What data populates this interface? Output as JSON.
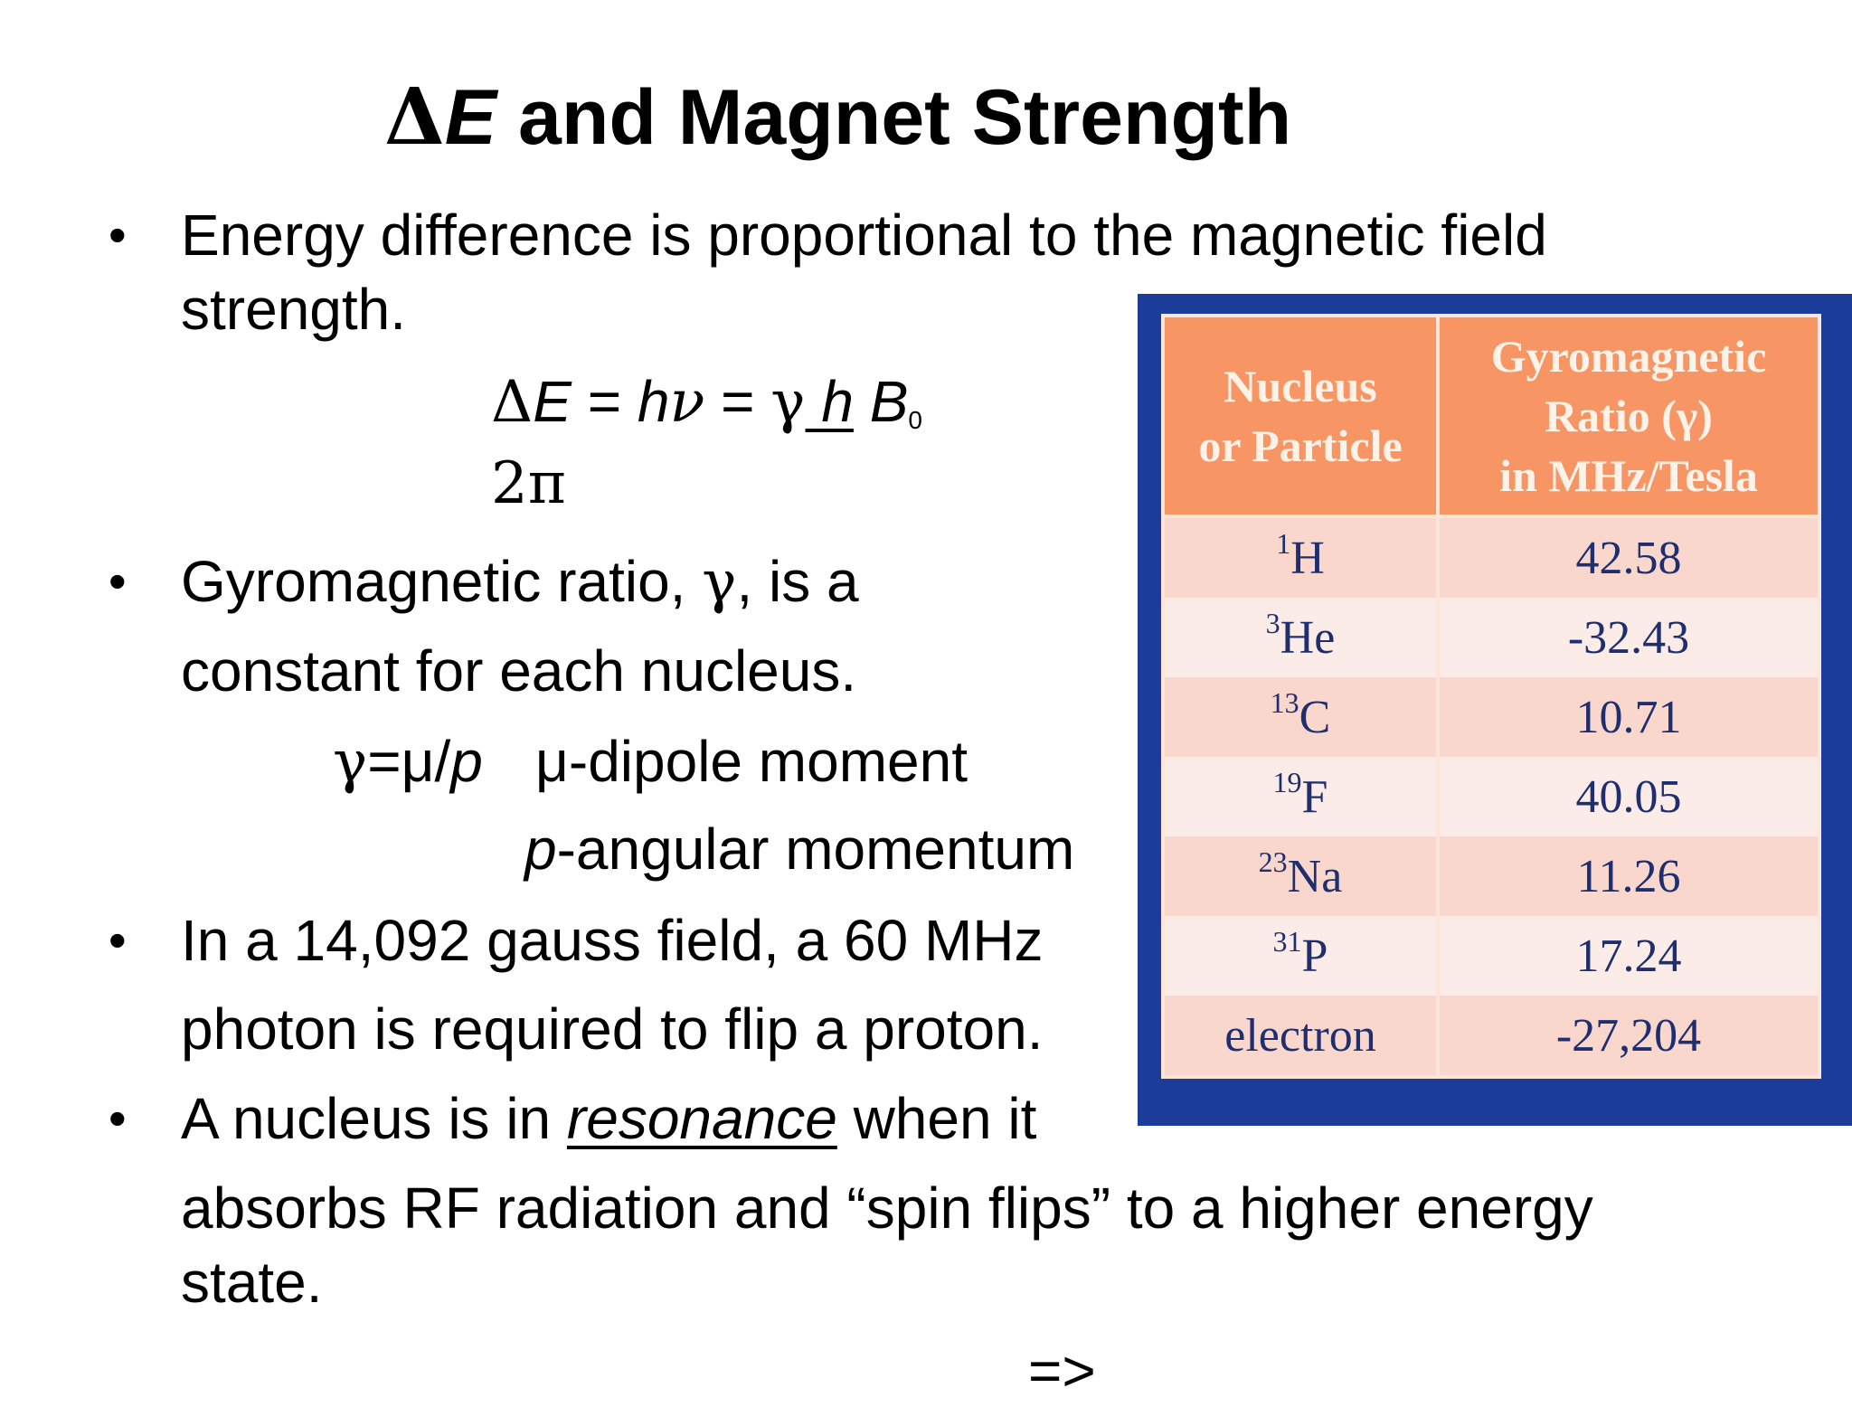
{
  "title": {
    "delta": "Δ",
    "var": "E",
    "rest": " and Magnet Strength"
  },
  "bullet_char": "•",
  "b1": {
    "line1": "Energy difference is proportional to the magnetic field",
    "line2": "strength."
  },
  "formula": {
    "delta": "Δ",
    "e": "E",
    "eq1": " = ",
    "h": "h",
    "nu": "ν",
    "eq2": " = ",
    "gamma": "γ",
    "hbar": " h",
    "b": " B",
    "sub0": "0",
    "denom": "2π"
  },
  "b2": {
    "line1_a": "Gyromagnetic ratio, ",
    "gamma": "γ",
    "line1_b": ", is a",
    "line2": "constant for each nucleus."
  },
  "gamma_def": {
    "gamma": "γ",
    "eq": "=μ/",
    "p": "p",
    "dipole": "μ-dipole moment",
    "p2": "p",
    "angular": "-angular momentum"
  },
  "b3": {
    "line1": "In a 14,092 gauss field, a 60 MHz",
    "line2": "photon is required to flip a proton."
  },
  "b4": {
    "line1_a": "A nucleus is in ",
    "resonance": "resonance",
    "line1_b": " when it",
    "line2": "absorbs RF radiation and “spin flips” to a higher energy",
    "line3": "state."
  },
  "next": "=>",
  "table": {
    "header": {
      "col1_l1": "Nucleus",
      "col1_l2": "or Particle",
      "col2_l1": "Gyromagnetic",
      "col2_l2": "Ratio (γ)",
      "col2_l3": "in MHz/Tesla"
    },
    "rows": [
      {
        "mass": "1",
        "sym": "H",
        "value": "42.58"
      },
      {
        "mass": "3",
        "sym": "He",
        "value": "-32.43"
      },
      {
        "mass": "13",
        "sym": "C",
        "value": "10.71"
      },
      {
        "mass": "19",
        "sym": "F",
        "value": "40.05"
      },
      {
        "mass": "23",
        "sym": "Na",
        "value": "11.26"
      },
      {
        "mass": "31",
        "sym": "P",
        "value": "17.24"
      },
      {
        "mass": "",
        "sym": "electron",
        "value": "-27,204"
      }
    ]
  },
  "colors": {
    "table_frame": "#1c3c9a",
    "header_bg": "#f79664",
    "row_odd": "#f9d7cd",
    "row_even": "#fbece8",
    "cell_text": "#1e2e6e"
  }
}
